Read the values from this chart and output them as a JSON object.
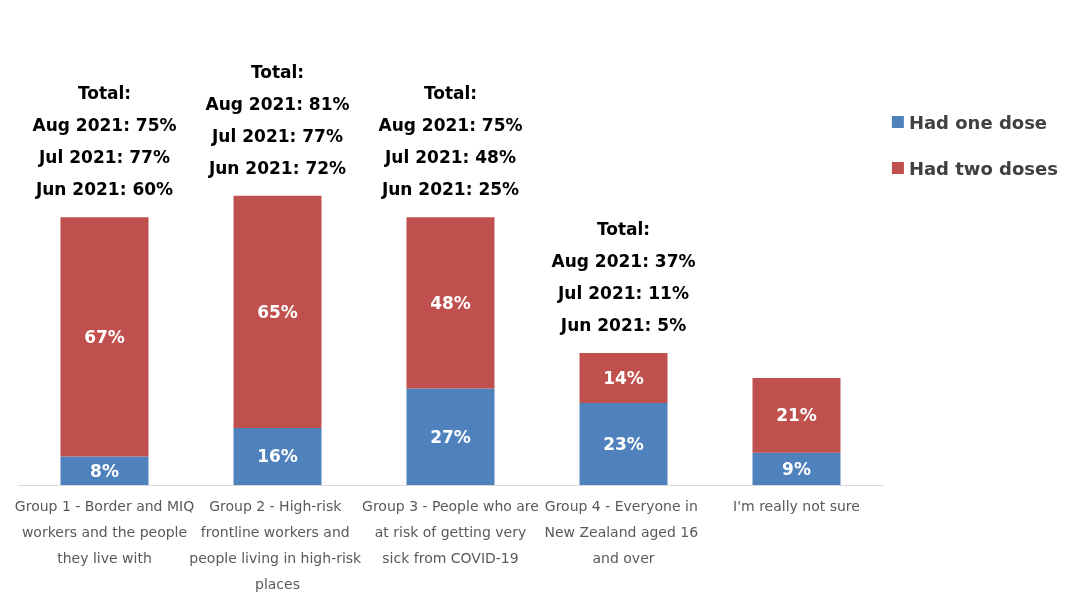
{
  "chart_data": {
    "type": "bar",
    "stacked": true,
    "legend": "top right",
    "categories": [
      "Group 1 - Border and MIQ workers and the people they live with",
      "Group 2 - High-risk frontline workers and people living in high-risk places",
      "Group 3 - People who are at risk of getting very sick from COVID-19",
      "Group 4 - Everyone in New Zealand aged 16 and over",
      "I'm really not sure"
    ],
    "series": [
      {
        "name": "Had one dose",
        "color": "#4f81bd",
        "values": [
          8,
          16,
          27,
          23,
          9
        ],
        "value_labels": [
          "8%",
          "16%",
          "27%",
          "23%",
          "9%"
        ]
      },
      {
        "name": "Had two doses",
        "color": "#c0504d",
        "values": [
          67,
          65,
          48,
          14,
          21
        ],
        "value_labels": [
          "67%",
          "65%",
          "48%",
          "14%",
          "21%"
        ]
      }
    ],
    "annotations": [
      {
        "text": "Total:\nAug 2021: 75%\nJul 2021: 77%\nJun 2021: 60%",
        "x": "Group 1 - Border and MIQ workers and the people they live with",
        "y": 75
      },
      {
        "text": "Total:\nAug 2021: 81%\nJul 2021: 77%\nJun 2021: 72%",
        "x": "Group 2 - High-risk frontline workers and people living in high-risk places",
        "y": 81
      },
      {
        "text": "Total:\nAug 2021: 75%\nJul 2021: 48%\nJun 2021: 25%",
        "x": "Group 3 - People who are at risk of getting very sick from COVID-19",
        "y": 75
      },
      {
        "text": "Total:\nAug 2021: 37%\nJul 2021: 11%\nJun 2021: 5%",
        "x": "Group 4 - Everyone in New Zealand aged 16 and over",
        "y": 37
      }
    ]
  }
}
